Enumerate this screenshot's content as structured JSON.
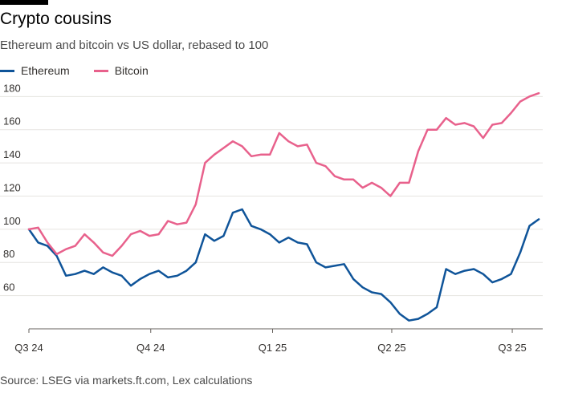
{
  "title": "Crypto cousins",
  "subtitle": "Ethereum and bitcoin vs US dollar, rebased to 100",
  "source": "Source: LSEG via markets.ft.com, Lex calculations",
  "colors": {
    "ethereum": "#0f5499",
    "bitcoin": "#e8618c",
    "grid": "#e6e4e1",
    "axis": "#66605c",
    "text": "#33302e"
  },
  "legend": [
    {
      "label": "Ethereum",
      "color": "#0f5499"
    },
    {
      "label": "Bitcoin",
      "color": "#e8618c"
    }
  ],
  "chart_data": {
    "type": "line",
    "x": [
      "2024-07-01",
      "2024-07-08",
      "2024-07-15",
      "2024-07-22",
      "2024-07-29",
      "2024-08-05",
      "2024-08-12",
      "2024-08-19",
      "2024-08-26",
      "2024-09-02",
      "2024-09-09",
      "2024-09-16",
      "2024-09-23",
      "2024-09-30",
      "2024-10-07",
      "2024-10-14",
      "2024-10-21",
      "2024-10-28",
      "2024-11-04",
      "2024-11-11",
      "2024-11-18",
      "2024-11-25",
      "2024-12-02",
      "2024-12-09",
      "2024-12-16",
      "2024-12-23",
      "2024-12-30",
      "2025-01-06",
      "2025-01-13",
      "2025-01-20",
      "2025-01-27",
      "2025-02-03",
      "2025-02-10",
      "2025-02-17",
      "2025-02-24",
      "2025-03-03",
      "2025-03-10",
      "2025-03-17",
      "2025-03-24",
      "2025-03-31",
      "2025-04-07",
      "2025-04-14",
      "2025-04-21",
      "2025-04-28",
      "2025-05-05",
      "2025-05-12",
      "2025-05-19",
      "2025-05-26",
      "2025-06-02",
      "2025-06-09",
      "2025-06-16",
      "2025-06-23",
      "2025-06-30",
      "2025-07-07",
      "2025-07-14",
      "2025-07-21"
    ],
    "series": [
      {
        "name": "Ethereum",
        "color": "#0f5499",
        "values": [
          100,
          92,
          90,
          84,
          72,
          73,
          75,
          73,
          77,
          74,
          72,
          66,
          70,
          73,
          75,
          71,
          72,
          75,
          80,
          97,
          93,
          96,
          110,
          112,
          102,
          100,
          97,
          92,
          95,
          92,
          91,
          80,
          77,
          78,
          79,
          70,
          65,
          62,
          61,
          56,
          49,
          45,
          46,
          49,
          53,
          76,
          73,
          75,
          76,
          73,
          68,
          70,
          73,
          86,
          102,
          106
        ]
      },
      {
        "name": "Bitcoin",
        "color": "#e8618c",
        "values": [
          100,
          101,
          92,
          85,
          88,
          90,
          97,
          92,
          86,
          84,
          90,
          97,
          99,
          96,
          97,
          105,
          103,
          104,
          115,
          140,
          145,
          149,
          153,
          150,
          144,
          145,
          145,
          158,
          153,
          150,
          151,
          140,
          138,
          132,
          130,
          130,
          125,
          128,
          125,
          120,
          128,
          128,
          147,
          160,
          160,
          167,
          163,
          164,
          162,
          155,
          163,
          164,
          170,
          177,
          180,
          182
        ]
      }
    ],
    "ylim": [
      40,
      185
    ],
    "yticks": [
      60,
      80,
      100,
      120,
      140,
      160,
      180
    ],
    "xticks": [
      {
        "label": "Q3 24",
        "value": "2024-07-01"
      },
      {
        "label": "Q4 24",
        "value": "2024-10-01"
      },
      {
        "label": "Q1 25",
        "value": "2025-01-01"
      },
      {
        "label": "Q2 25",
        "value": "2025-04-01"
      },
      {
        "label": "Q3 25",
        "value": "2025-07-01"
      }
    ],
    "grid": true,
    "legend_position": "top-left"
  }
}
